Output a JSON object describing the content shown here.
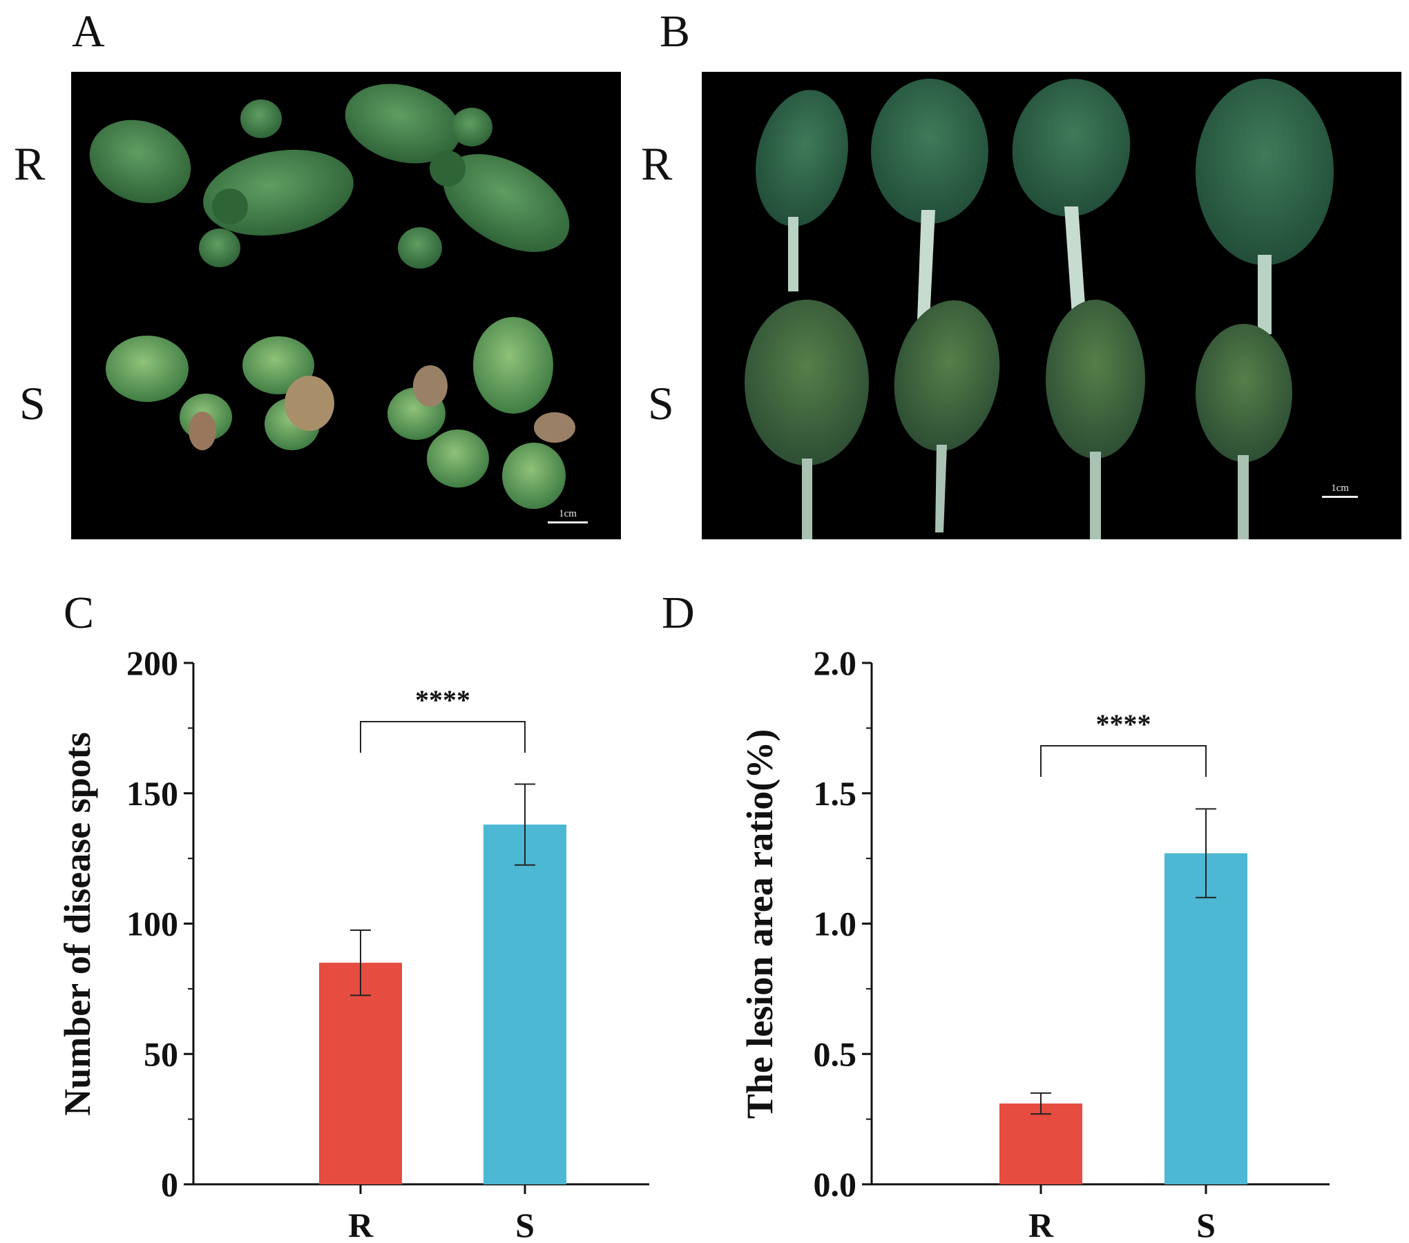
{
  "panels": {
    "A": {
      "letter": "A",
      "row_labels": [
        "R",
        "S"
      ],
      "scale_text": "1cm"
    },
    "B": {
      "letter": "B",
      "row_labels": [
        "R",
        "S"
      ],
      "scale_text": "1cm"
    },
    "C": {
      "letter": "C"
    },
    "D": {
      "letter": "D"
    }
  },
  "colors": {
    "R": "#e64c3f",
    "S": "#4cb8d4",
    "photo_background": "#000000",
    "leaf_green": "#3e7f48"
  },
  "chart_data": [
    {
      "type": "bar",
      "panel": "C",
      "categories": [
        "R",
        "S"
      ],
      "values": [
        85,
        138
      ],
      "errors": [
        12.5,
        15.5
      ],
      "ylabel": "Number of disease spots",
      "xlabel": "",
      "ylim": [
        0,
        200
      ],
      "yticks": [
        "0",
        "50",
        "100",
        "150",
        "200"
      ],
      "significance": "****",
      "grid": false
    },
    {
      "type": "bar",
      "panel": "D",
      "categories": [
        "R",
        "S"
      ],
      "values": [
        0.31,
        1.27
      ],
      "errors": [
        0.04,
        0.17
      ],
      "ylabel": "The lesion area ratio(%)",
      "xlabel": "",
      "ylim": [
        0,
        2.0
      ],
      "yticks": [
        "0.0",
        "0.5",
        "1.0",
        "1.5",
        "2.0"
      ],
      "significance": "****",
      "grid": false
    }
  ]
}
